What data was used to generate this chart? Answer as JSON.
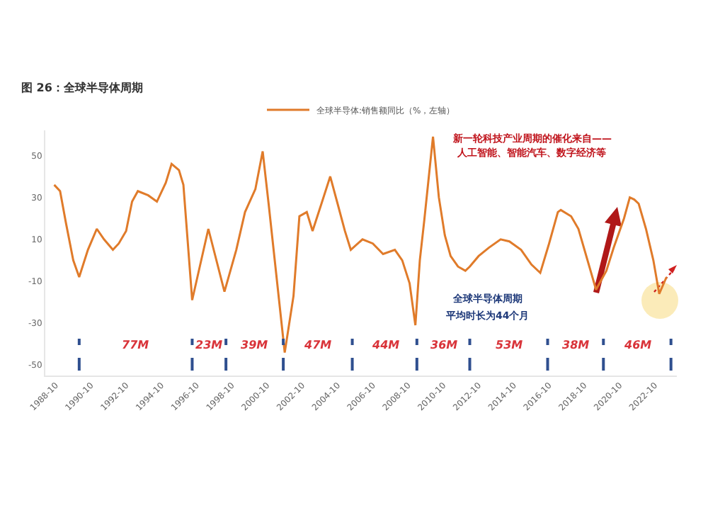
{
  "chart_data": {
    "type": "line",
    "title": "图 26：全球半导体周期",
    "x": [
      "1988-09",
      "1989-01",
      "1989-05",
      "1989-10",
      "1990-02",
      "1990-08",
      "1991-02",
      "1991-07",
      "1992-01",
      "1992-05",
      "1992-10",
      "1993-02",
      "1993-06",
      "1994-01",
      "1994-07",
      "1995-01",
      "1995-05",
      "1995-10",
      "1996-01",
      "1996-07",
      "1997-06",
      "1998-05",
      "1999-01",
      "1999-07",
      "2000-02",
      "2000-07",
      "2000-11",
      "2001-10",
      "2002-04",
      "2002-08",
      "2003-01",
      "2003-05",
      "2003-11",
      "2004-05",
      "2004-10",
      "2005-03",
      "2005-07",
      "2006-03",
      "2006-10",
      "2007-05",
      "2008-01",
      "2008-06",
      "2008-11",
      "2009-03",
      "2009-06",
      "2009-09",
      "2010-03",
      "2010-07",
      "2010-11",
      "2011-03",
      "2011-08",
      "2012-01",
      "2012-04",
      "2012-10",
      "2013-05",
      "2014-01",
      "2014-07",
      "2015-03",
      "2015-10",
      "2016-04",
      "2016-10",
      "2017-04",
      "2017-06",
      "2018-01",
      "2018-06",
      "2019-06",
      "2020-01",
      "2020-06",
      "2021-01",
      "2021-05",
      "2021-08",
      "2021-11",
      "2022-04",
      "2022-09",
      "2023-01",
      "2023-06"
    ],
    "series": [
      {
        "name": "全球半导体:销售额同比（%，左轴）",
        "color": "#e07b2a",
        "values": [
          36,
          33,
          18,
          0,
          -8,
          5,
          15,
          10,
          5,
          8,
          14,
          28,
          33,
          31,
          28,
          37,
          46,
          43,
          36,
          -19,
          15,
          -15,
          5,
          23,
          34,
          52,
          27,
          -44,
          -17,
          21,
          23,
          14,
          27,
          40,
          27,
          14,
          5,
          10,
          8,
          3,
          5,
          0,
          -11,
          -31,
          0,
          19,
          59,
          30,
          12,
          2,
          -3,
          -5,
          -3,
          2,
          6,
          10,
          9,
          5,
          -2,
          -6,
          8,
          23,
          24,
          21,
          15,
          -14,
          -5,
          6,
          20,
          30,
          29,
          27,
          15,
          0,
          -16,
          -8
        ]
      }
    ],
    "ylim": [
      -55,
      62
    ],
    "yticks": [
      -50,
      -30,
      -10,
      10,
      30,
      50
    ],
    "xlim": [
      "1988-03",
      "2024-01"
    ],
    "xticks": [
      "1988-10",
      "1990-10",
      "1992-10",
      "1994-10",
      "1996-10",
      "1998-10",
      "2000-10",
      "2002-10",
      "2004-10",
      "2006-10",
      "2008-10",
      "2010-10",
      "2012-10",
      "2014-10",
      "2016-10",
      "2018-10",
      "2020-10",
      "2022-10"
    ],
    "grid": false,
    "legend": "top",
    "marker": "none",
    "line_style": "solid",
    "ref_lines": [
      {
        "axis": "x",
        "value": "1990-02",
        "color": "#2f4f8f",
        "line_style": "dashed"
      },
      {
        "axis": "x",
        "value": "1996-07",
        "color": "#2f4f8f",
        "line_style": "dashed"
      },
      {
        "axis": "x",
        "value": "1998-06",
        "color": "#2f4f8f",
        "line_style": "dashed"
      },
      {
        "axis": "x",
        "value": "2001-09",
        "color": "#2f4f8f",
        "line_style": "dashed"
      },
      {
        "axis": "x",
        "value": "2005-08",
        "color": "#2f4f8f",
        "line_style": "dashed"
      },
      {
        "axis": "x",
        "value": "2009-04",
        "color": "#2f4f8f",
        "line_style": "dashed"
      },
      {
        "axis": "x",
        "value": "2012-04",
        "color": "#2f4f8f",
        "line_style": "dashed"
      },
      {
        "axis": "x",
        "value": "2016-09",
        "color": "#2f4f8f",
        "line_style": "dashed"
      },
      {
        "axis": "x",
        "value": "2019-11",
        "color": "#2f4f8f",
        "line_style": "dashed"
      },
      {
        "axis": "x",
        "value": "2023-09",
        "color": "#2f4f8f",
        "line_style": "dashed"
      }
    ],
    "annotations": [
      "77M",
      "23M",
      "39M",
      "47M",
      "44M",
      "36M",
      "53M",
      "38M",
      "46M",
      "新一轮科技产业周期的催化来自——",
      "人工智能、智能汽车、数字经济等",
      "全球半导体周期",
      "平均时长为44个月"
    ]
  }
}
